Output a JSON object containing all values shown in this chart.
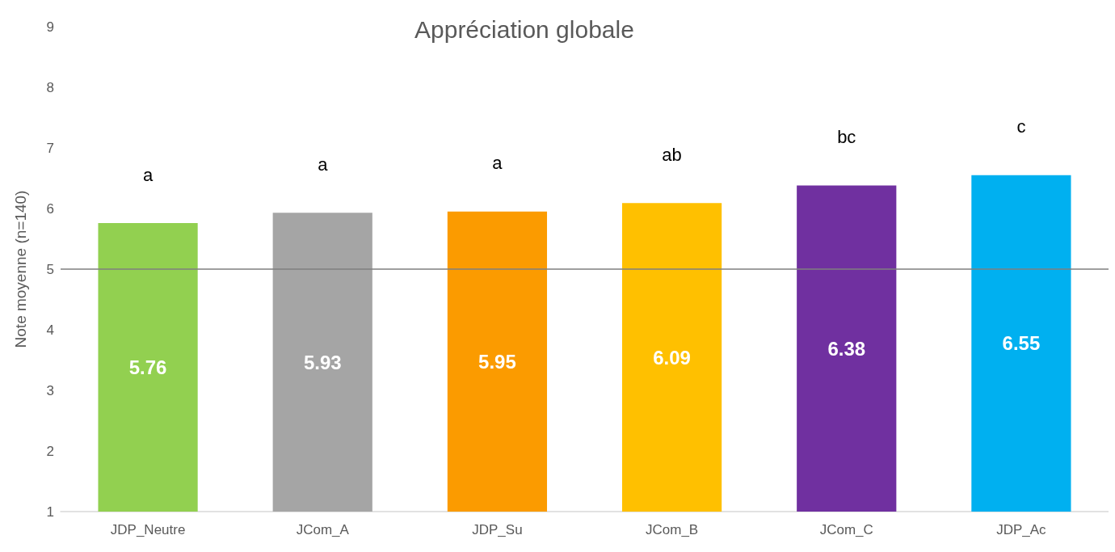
{
  "chart_data": {
    "type": "bar",
    "title": "Appréciation globale",
    "ylabel": "Note moyenne (n=140)",
    "categories": [
      "JDP_Neutre",
      "JCom_A",
      "JDP_Su",
      "JCom_B",
      "JCom_C",
      "JDP_Ac"
    ],
    "values": [
      5.76,
      5.93,
      5.95,
      6.09,
      6.38,
      6.55
    ],
    "colors": [
      "#92d050",
      "#a5a5a5",
      "#fb9b00",
      "#ffc000",
      "#7030a0",
      "#00b0f0"
    ],
    "ylim": [
      1,
      9
    ],
    "yticks": [
      1,
      2,
      3,
      4,
      5,
      6,
      7,
      8,
      9
    ],
    "grid": false,
    "data_labels": true,
    "ref_lines": [
      {
        "axis": "y",
        "value": 5,
        "color": "#7f7f7f"
      }
    ],
    "annotations": [
      "a",
      "a",
      "a",
      "ab",
      "bc",
      "c"
    ]
  }
}
